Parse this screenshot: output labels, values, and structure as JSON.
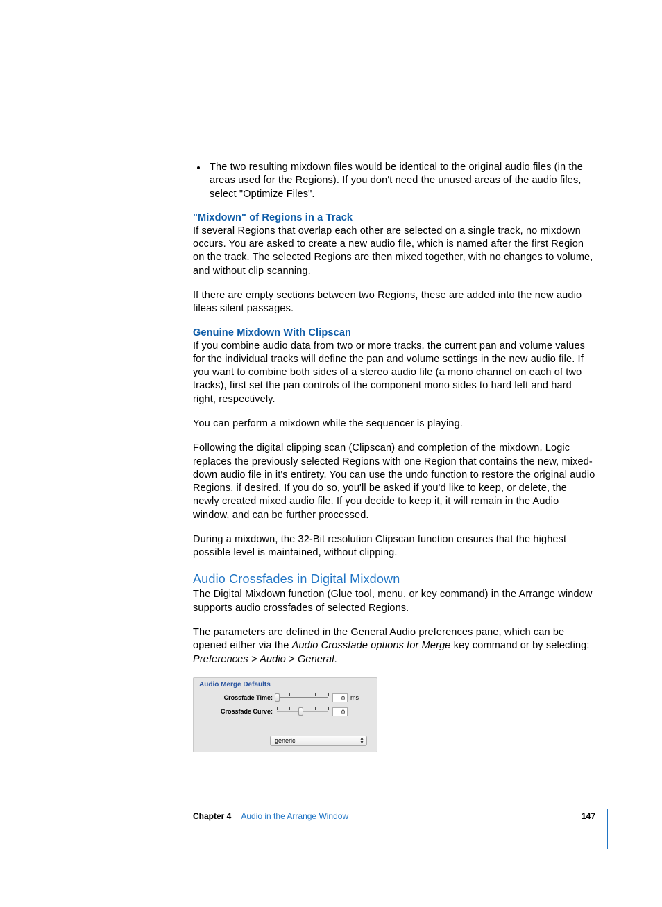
{
  "bullet": "The two resulting mixdown files would be identical to the original audio files (in the areas used for the Regions). If you don't need the unused areas of the audio files, select \"Optimize Files\".",
  "heading1": "\"Mixdown\" of Regions in a Track",
  "p1": "If several Regions that overlap each other are selected on a single track, no mixdown occurs. You are asked to create a new audio file, which is named after the first Region on the track. The selected Regions are then mixed together, with no changes to volume, and without clip scanning.",
  "p2": "If there are empty sections between two Regions, these are added into the new audio fileas silent passages.",
  "heading2": "Genuine Mixdown With Clipscan",
  "p3": "If you combine audio data from two or more tracks, the current pan and volume values for the individual tracks will define the pan and volume settings in the new audio file. If you want to combine both sides of a stereo audio file (a mono channel on each of two tracks), first set the pan controls of the component mono sides to hard left and hard right, respectively.",
  "p4": "You can perform a mixdown while the sequencer is playing.",
  "p5": "Following the digital clipping scan (Clipscan) and completion of the mixdown, Logic replaces the previously selected Regions with one Region that contains the new, mixed-down audio file in it's entirety. You can use the undo function to restore the original audio Regions, if desired. If you do so, you'll be asked if you'd like to keep, or delete, the newly created mixed audio file. If you decide to keep it, it will remain in the Audio window, and can be further processed.",
  "p6": "During a mixdown, the 32-Bit resolution Clipscan function ensures that the highest possible level is maintained, without clipping.",
  "sectionTitle": "Audio Crossfades in Digital Mixdown",
  "p7": "The Digital Mixdown function (Glue tool, menu, or key command) in the Arrange window supports audio crossfades of selected Regions.",
  "p8a": "The parameters are defined in the General Audio preferences pane, which can be opened either via the ",
  "p8i": "Audio Crossfade options for Merge",
  "p8b": " key command or by selecting:  ",
  "p8c": "Preferences > Audio > General",
  "p8d": ".",
  "panel": {
    "title": "Audio Merge Defaults",
    "row1": {
      "label": "Crossfade Time:",
      "value": "0",
      "unit": "ms",
      "width": 74,
      "thumb": 0,
      "ticks": [
        0,
        18,
        37,
        55,
        74
      ]
    },
    "row2": {
      "label": "Crossfade Curve:",
      "value": "0",
      "unit": "",
      "width": 74,
      "thumb": 34,
      "ticks": [
        0,
        18,
        37,
        55,
        74
      ]
    },
    "dropdown": "generic"
  },
  "footer": {
    "chapter": "Chapter 4",
    "title": "Audio in the Arrange Window",
    "page": "147"
  },
  "colors": {
    "link": "#1f74c4",
    "subhead": "#0f5da8",
    "panelTitle": "#2c56a0",
    "panelBg": "#e5e5e5"
  }
}
